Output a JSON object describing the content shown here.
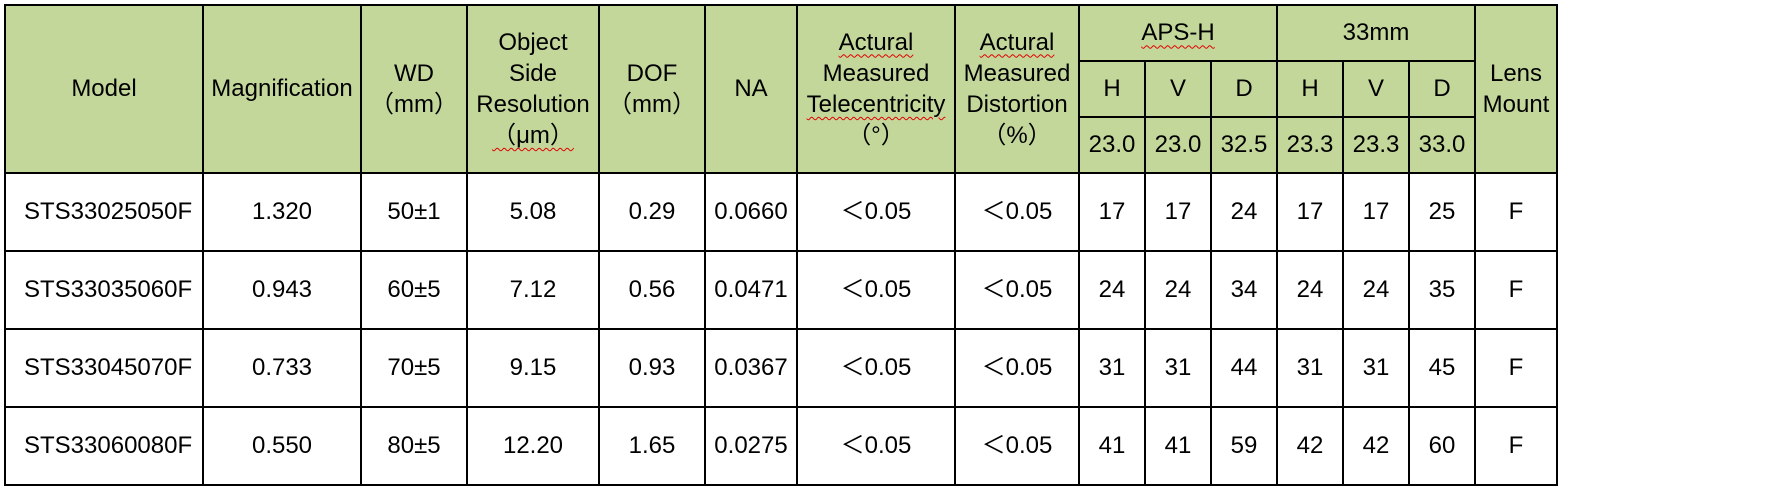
{
  "table": {
    "headers": {
      "model": "Model",
      "magnification": "Magnification",
      "wd": [
        "WD",
        "（mm）"
      ],
      "resolution": [
        "Object",
        "Side",
        "Resolution",
        "（μm）"
      ],
      "dof": [
        "DOF",
        "（mm）"
      ],
      "na": "NA",
      "telecentricity": [
        "Actural",
        "Measured",
        "Telecentricity",
        "（°）"
      ],
      "distortion": [
        "Actural",
        "Measured",
        "Distortion",
        "（%）"
      ],
      "aps_h": {
        "label": "APS-H",
        "cols": [
          "H",
          "V",
          "D"
        ],
        "sizes": [
          "23.0",
          "23.0",
          "32.5"
        ]
      },
      "s33mm": {
        "label": "33mm",
        "cols": [
          "H",
          "V",
          "D"
        ],
        "sizes": [
          "23.3",
          "23.3",
          "33.0"
        ]
      },
      "mount": [
        "Lens",
        "Mount"
      ]
    },
    "rows": [
      [
        "STS33025050F",
        "1.320",
        "50±1",
        "5.08",
        "0.29",
        "0.0660",
        "＜0.05",
        "＜0.05",
        "17",
        "17",
        "24",
        "17",
        "17",
        "25",
        "F"
      ],
      [
        "STS33035060F",
        "0.943",
        "60±5",
        "7.12",
        "0.56",
        "0.0471",
        "＜0.05",
        "＜0.05",
        "24",
        "24",
        "34",
        "24",
        "24",
        "35",
        "F"
      ],
      [
        "STS33045070F",
        "0.733",
        "70±5",
        "9.15",
        "0.93",
        "0.0367",
        "＜0.05",
        "＜0.05",
        "31",
        "31",
        "44",
        "31",
        "31",
        "45",
        "F"
      ],
      [
        "STS33060080F",
        "0.550",
        "80±5",
        "12.20",
        "1.65",
        "0.0275",
        "＜0.05",
        "＜0.05",
        "41",
        "41",
        "59",
        "42",
        "42",
        "60",
        "F"
      ]
    ]
  },
  "colors": {
    "header_bg": "#c4d79b",
    "border": "#000000",
    "spell_underline": "#e00000"
  }
}
